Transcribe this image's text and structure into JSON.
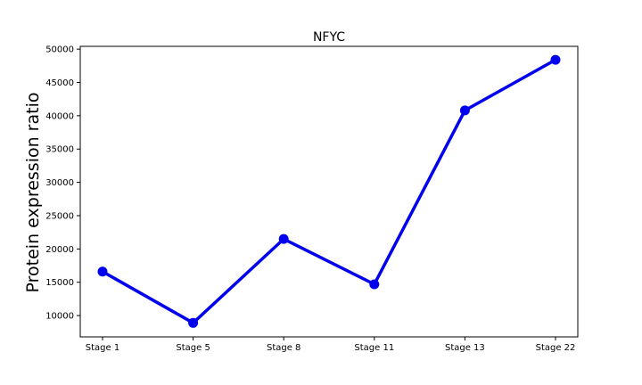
{
  "chart_data": {
    "type": "line",
    "title": "NFYC",
    "xlabel": "",
    "ylabel": "Protein expression ratio",
    "categories": [
      "Stage 1",
      "Stage 5",
      "Stage 8",
      "Stage 11",
      "Stage 13",
      "Stage 22"
    ],
    "series": [
      {
        "values": [
          16600,
          8900,
          21500,
          14700,
          40800,
          48400
        ]
      }
    ],
    "yticks": [
      10000,
      15000,
      20000,
      25000,
      30000,
      35000,
      40000,
      45000,
      50000
    ],
    "ylim": [
      6800,
      50420
    ],
    "grid": false,
    "colors": {
      "line": "#0000ee",
      "marker": "#0000ee"
    }
  }
}
